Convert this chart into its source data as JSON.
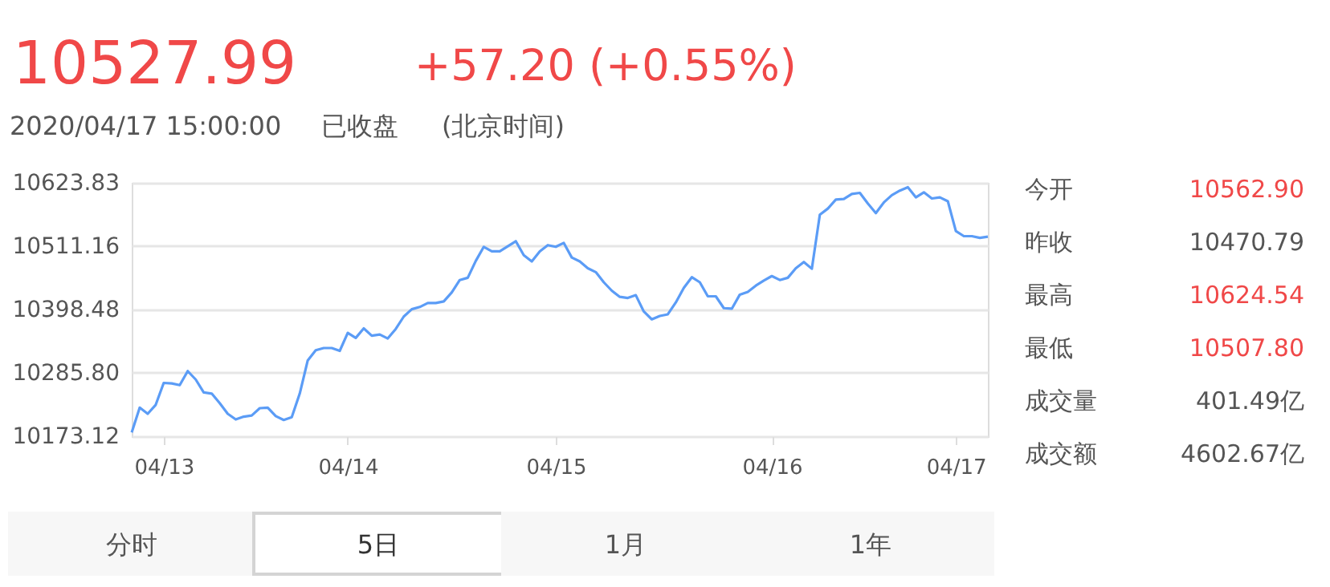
{
  "chart_data": {
    "type": "line",
    "title": "10527.99",
    "subtitle": "+57.20 (+0.55%)",
    "annotations": [
      "2020/04/17 15:00:00",
      "已收盘",
      "(北京时间)",
      "今开",
      "10562.90",
      "昨收",
      "10470.79",
      "最高",
      "10624.54",
      "最低",
      "10507.80",
      "成交量",
      "401.49亿",
      "成交额",
      "4602.67亿",
      "分时",
      "5日",
      "1月",
      "1年"
    ],
    "categories": [
      null,
      null,
      null,
      null,
      "04/13",
      null,
      null,
      null,
      null,
      null,
      null,
      null,
      null,
      null,
      null,
      null,
      null,
      null,
      null,
      null,
      null,
      null,
      null,
      null,
      null,
      null,
      null,
      "04/14",
      null,
      null,
      null,
      null,
      null,
      null,
      null,
      null,
      null,
      null,
      null,
      null,
      null,
      null,
      null,
      null,
      null,
      null,
      null,
      null,
      null,
      null,
      null,
      null,
      null,
      "04/15",
      null,
      null,
      null,
      null,
      null,
      null,
      null,
      null,
      null,
      null,
      null,
      null,
      null,
      null,
      null,
      null,
      null,
      null,
      null,
      null,
      null,
      null,
      null,
      null,
      null,
      null,
      "04/16",
      null,
      null,
      null,
      null,
      null,
      null,
      null,
      null,
      null,
      null,
      null,
      null,
      null,
      null,
      null,
      null,
      null,
      null,
      null,
      null,
      null,
      null,
      "04/17",
      null,
      null,
      null,
      null
    ],
    "ylim": [
      10173.12,
      10623.83
    ],
    "yticks": [
      10173.12,
      {
        "value": 10285.8,
        "label": "10285.80"
      },
      10398.48,
      10511.16,
      10623.83
    ],
    "grid": "y",
    "legend": false,
    "marker": "none",
    "line_style": "solid",
    "series": [
      {
        "color": "#5b9cf6",
        "values": [
          10180,
          10224,
          10213,
          10229,
          10268,
          10267,
          10264,
          10289,
          10274,
          10251,
          10249,
          10232,
          10213,
          10203,
          10208,
          10210,
          10223,
          10224,
          10209,
          10202,
          10207,
          10249,
          10308,
          10326,
          10330,
          10330,
          10325,
          10357,
          10348,
          10365,
          10352,
          10354,
          10347,
          10364,
          10386,
          10399,
          10403,
          10410,
          10410,
          10413,
          10429,
          10451,
          10455,
          10485,
          10510,
          10502,
          10502,
          10511,
          10520,
          10495,
          10484,
          10502,
          10513,
          10510,
          10517,
          10491,
          10484,
          10472,
          10465,
          10447,
          10432,
          10421,
          10419,
          10424,
          10395,
          10381,
          10387,
          10390,
          10411,
          10437,
          10456,
          10447,
          10422,
          10422,
          10401,
          10400,
          10425,
          10430,
          10441,
          10450,
          10458,
          10451,
          10455,
          10472,
          10483,
          10471,
          10567,
          10578,
          10594,
          10595,
          10604,
          10606,
          10587,
          10570,
          10589,
          10602,
          10610,
          10616,
          10598,
          10607,
          10596,
          10598,
          10591,
          10538,
          10529,
          10529,
          10526,
          10528
        ]
      }
    ]
  }
}
